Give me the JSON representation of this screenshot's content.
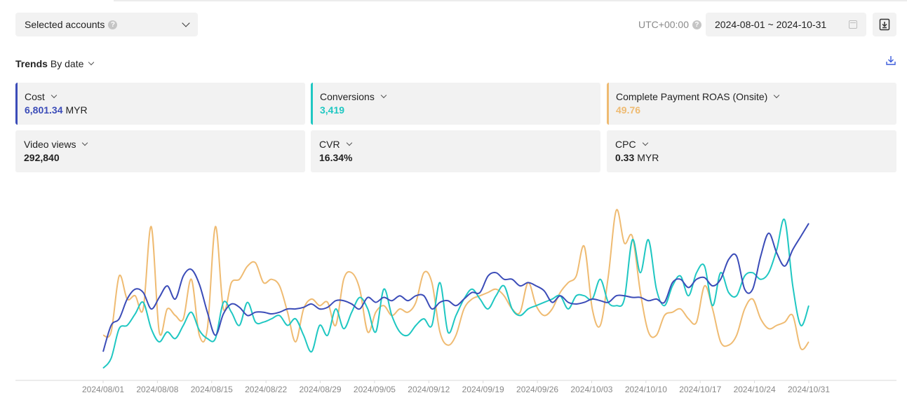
{
  "toolbar": {
    "account_select": "Selected accounts",
    "timezone": "UTC+00:00",
    "date_range": "2024-08-01 ~ 2024-10-31",
    "help_glyph": "?"
  },
  "trends": {
    "title": "Trends",
    "mode": "By date"
  },
  "metrics": [
    {
      "label": "Cost",
      "value": "6,801.34",
      "unit": "MYR",
      "color": "#3b4cb8",
      "selected": true
    },
    {
      "label": "Conversions",
      "value": "3,419",
      "unit": "",
      "color": "#1fc7c2",
      "selected": true
    },
    {
      "label": "Complete Payment ROAS (Onsite)",
      "value": "49.76",
      "unit": "",
      "color": "#efbb72",
      "selected": true
    },
    {
      "label": "Video views",
      "value": "292,840",
      "unit": "",
      "color": "#222222",
      "selected": false
    },
    {
      "label": "CVR",
      "value": "16.34%",
      "unit": "",
      "color": "#222222",
      "selected": false
    },
    {
      "label": "CPC",
      "value": "0.33",
      "unit": "MYR",
      "color": "#222222",
      "selected": false
    }
  ],
  "chart_data": {
    "type": "line",
    "x_ticks": [
      "2024/08/01",
      "2024/08/08",
      "2024/08/15",
      "2024/08/22",
      "2024/08/29",
      "2024/09/05",
      "2024/09/12",
      "2024/09/19",
      "2024/09/26",
      "2024/10/03",
      "2024/10/10",
      "2024/10/17",
      "2024/10/24",
      "2024/10/31"
    ],
    "grid": false,
    "series": [
      {
        "name": "Cost",
        "color": "#3b4cb8",
        "values": [
          0.14,
          0.3,
          0.34,
          0.46,
          0.52,
          0.5,
          0.4,
          0.47,
          0.54,
          0.46,
          0.6,
          0.64,
          0.55,
          0.38,
          0.24,
          0.37,
          0.43,
          0.41,
          0.36,
          0.38,
          0.38,
          0.37,
          0.38,
          0.4,
          0.4,
          0.41,
          0.43,
          0.4,
          0.41,
          0.45,
          0.45,
          0.43,
          0.4,
          0.47,
          0.44,
          0.47,
          0.45,
          0.48,
          0.45,
          0.48,
          0.48,
          0.4,
          0.44,
          0.45,
          0.42,
          0.46,
          0.5,
          0.5,
          0.6,
          0.62,
          0.58,
          0.58,
          0.54,
          0.56,
          0.54,
          0.51,
          0.44,
          0.48,
          0.44,
          0.43,
          0.44,
          0.46,
          0.45,
          0.44,
          0.48,
          0.48,
          0.47,
          0.47,
          0.45,
          0.46,
          0.44,
          0.56,
          0.58,
          0.53,
          0.58,
          0.59,
          0.54,
          0.58,
          0.7,
          0.72,
          0.52,
          0.52,
          0.72,
          0.86,
          0.74,
          0.66,
          0.76,
          0.84,
          0.92
        ]
      },
      {
        "name": "Conversions",
        "color": "#1fc7c2",
        "values": [
          0.04,
          0.1,
          0.28,
          0.3,
          0.37,
          0.44,
          0.28,
          0.2,
          0.26,
          0.22,
          0.3,
          0.38,
          0.27,
          0.22,
          0.22,
          0.44,
          0.38,
          0.3,
          0.44,
          0.32,
          0.32,
          0.34,
          0.36,
          0.3,
          0.34,
          0.24,
          0.14,
          0.3,
          0.24,
          0.4,
          0.28,
          0.38,
          0.47,
          0.4,
          0.26,
          0.52,
          0.36,
          0.26,
          0.24,
          0.3,
          0.34,
          0.3,
          0.56,
          0.26,
          0.36,
          0.46,
          0.52,
          0.46,
          0.4,
          0.48,
          0.54,
          0.4,
          0.36,
          0.4,
          0.42,
          0.44,
          0.46,
          0.48,
          0.4,
          0.48,
          0.48,
          0.46,
          0.58,
          0.44,
          0.42,
          0.46,
          0.82,
          0.62,
          0.82,
          0.52,
          0.42,
          0.54,
          0.6,
          0.48,
          0.62,
          0.66,
          0.42,
          0.62,
          0.5,
          0.48,
          0.6,
          0.62,
          0.58,
          0.62,
          0.76,
          0.94,
          0.54,
          0.3,
          0.42
        ]
      },
      {
        "name": "Complete Payment ROAS (Onsite)",
        "color": "#efbb72",
        "values": [
          0.24,
          0.26,
          0.6,
          0.46,
          0.48,
          0.4,
          0.9,
          0.26,
          0.4,
          0.36,
          0.34,
          0.58,
          0.24,
          0.28,
          0.9,
          0.4,
          0.56,
          0.58,
          0.66,
          0.68,
          0.56,
          0.58,
          0.54,
          0.38,
          0.2,
          0.4,
          0.46,
          0.42,
          0.44,
          0.3,
          0.58,
          0.62,
          0.52,
          0.26,
          0.38,
          0.42,
          0.36,
          0.4,
          0.38,
          0.44,
          0.62,
          0.56,
          0.26,
          0.18,
          0.24,
          0.4,
          0.46,
          0.48,
          0.5,
          0.52,
          0.48,
          0.4,
          0.38,
          0.56,
          0.42,
          0.36,
          0.4,
          0.5,
          0.56,
          0.6,
          0.78,
          0.4,
          0.3,
          0.6,
          1.0,
          0.8,
          0.84,
          0.5,
          0.26,
          0.24,
          0.36,
          0.38,
          0.4,
          0.34,
          0.32,
          0.54,
          0.4,
          0.2,
          0.18,
          0.24,
          0.4,
          0.46,
          0.34,
          0.28,
          0.3,
          0.32,
          0.36,
          0.16,
          0.2
        ]
      }
    ]
  }
}
